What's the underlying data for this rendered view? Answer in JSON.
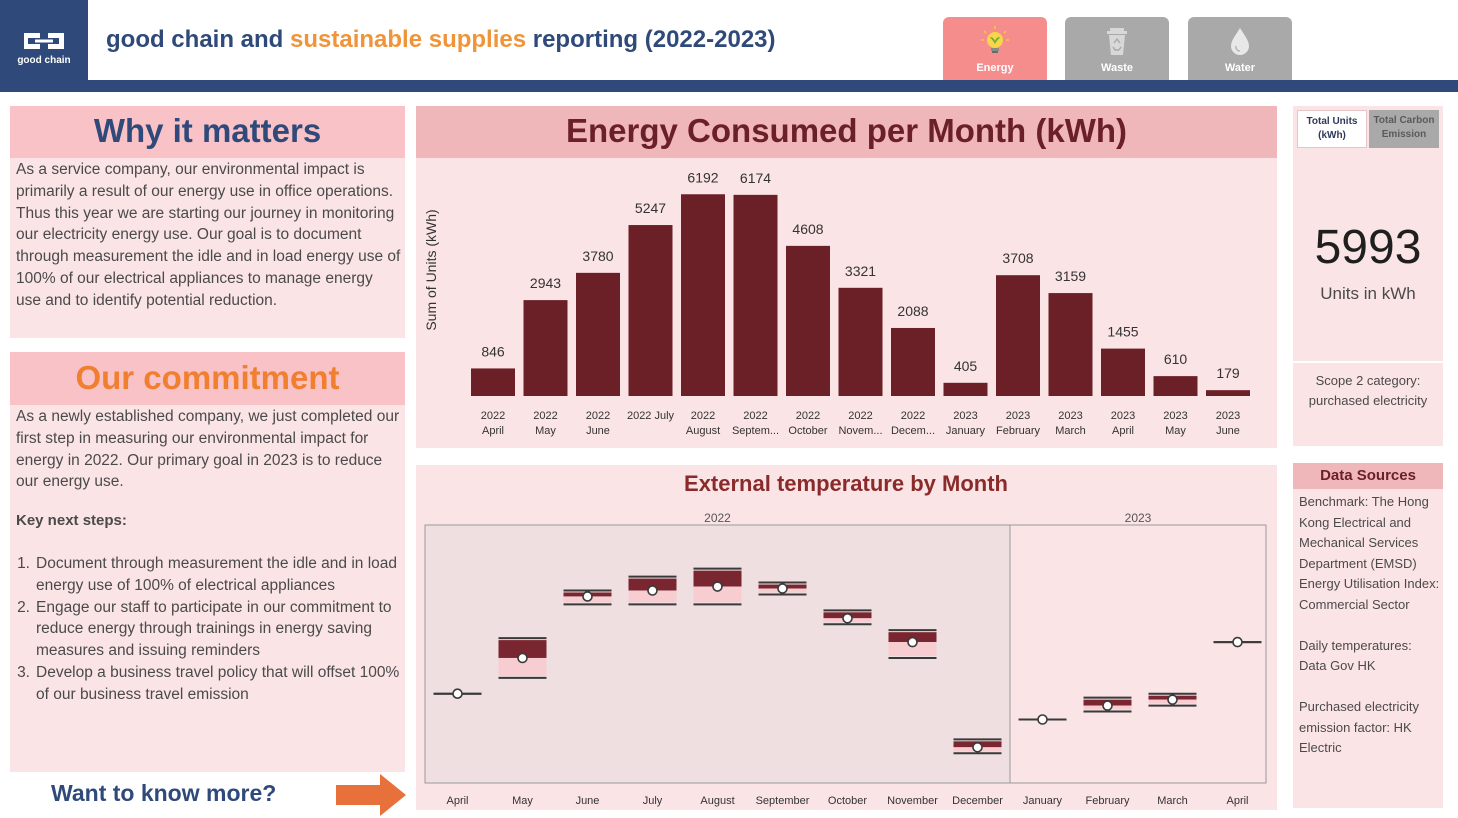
{
  "header": {
    "logo_text": "good chain",
    "title_part1": "good chain and ",
    "title_highlight": "sustainable supplies",
    "title_part2": " reporting (2022-2023)",
    "nav": [
      {
        "label": "Energy",
        "icon": "lightbulb-icon",
        "active": true
      },
      {
        "label": "Waste",
        "icon": "recycle-bin-icon",
        "active": false
      },
      {
        "label": "Water",
        "icon": "water-drop-icon",
        "active": false
      }
    ]
  },
  "why": {
    "heading": "Why it matters",
    "body": "As a service company, our environmental impact is primarily a result of our energy use in office operations. Thus this year we are starting our journey in monitoring our electricity energy use. Our goal is to document through measurement the idle and in load energy use of 100% of our electrical appliances to manage energy use and to identify potential reduction."
  },
  "commitment": {
    "heading": "Our commitment",
    "body": "As a newly established company, we just completed our first step in measuring our environmental impact for energy in 2022. Our primary goal in 2023 is to reduce our energy use.",
    "key_steps_label": "Key next steps:",
    "steps": [
      {
        "num": "1.",
        "text": "Document through measurement the idle and in load energy use of 100% of electrical appliances"
      },
      {
        "num": "2.",
        "text": "Engage our staff to participate in our commitment to reduce energy through trainings in energy saving measures and issuing reminders"
      },
      {
        "num": "3.",
        "text": "Develop a business travel policy that will offset 100% of our business travel emission"
      }
    ]
  },
  "more": {
    "label": "Want to know more?"
  },
  "kpi": {
    "tab_units": "Total Units (kWh)",
    "tab_carbon": "Total Carbon Emission",
    "value": "5993",
    "unit": "Units  in kWh",
    "scope": "Scope 2 category: purchased electricity"
  },
  "data_sources": {
    "heading": "Data Sources",
    "items": [
      "Benchmark: The Hong Kong Electrical and Mechanical Services Department (EMSD) Energy Utilisation Index: Commercial Sector",
      "Daily temperatures: Data Gov HK",
      "Purchased electricity emission factor: HK Electric"
    ]
  },
  "chart_data": [
    {
      "type": "bar",
      "title": "Energy Consumed per Month (kWh)",
      "ylabel": "Sum of Units (kWh)",
      "xlabel": "",
      "categories": [
        [
          "2022",
          "April"
        ],
        [
          "2022",
          "May"
        ],
        [
          "2022",
          "June"
        ],
        [
          "2022 July",
          ""
        ],
        [
          "2022",
          "August"
        ],
        [
          "2022",
          "Septem..."
        ],
        [
          "2022",
          "October"
        ],
        [
          "2022",
          "Novem..."
        ],
        [
          "2022",
          "Decem..."
        ],
        [
          "2023",
          "January"
        ],
        [
          "2023",
          "February"
        ],
        [
          "2023",
          "March"
        ],
        [
          "2023",
          "April"
        ],
        [
          "2023",
          "May"
        ],
        [
          "2023",
          "June"
        ]
      ],
      "values": [
        846,
        2943,
        3780,
        5247,
        6192,
        6174,
        4608,
        3321,
        2088,
        405,
        3708,
        3159,
        1455,
        610,
        179
      ],
      "ylim": [
        0,
        6200
      ],
      "bar_color": "#6b1f27"
    },
    {
      "type": "box",
      "title": "External temperature by Month",
      "groups": [
        {
          "label": "2022",
          "months": [
            "April",
            "May",
            "June",
            "July",
            "August",
            "September",
            "October",
            "November",
            "December"
          ]
        },
        {
          "label": "2023",
          "months": [
            "January",
            "February",
            "March",
            "April"
          ]
        }
      ],
      "series": [
        {
          "month": "April",
          "low": 23.5,
          "q1": 23.5,
          "median": 23.5,
          "q3": 23.5,
          "high": 23.5
        },
        {
          "month": "May",
          "low": 24.3,
          "q1": 24.4,
          "median": 25.3,
          "q3": 26.2,
          "high": 26.3
        },
        {
          "month": "June",
          "low": 28.0,
          "q1": 28.1,
          "median": 28.4,
          "q3": 28.6,
          "high": 28.7
        },
        {
          "month": "July",
          "low": 28.0,
          "q1": 28.1,
          "median": 28.7,
          "q3": 29.3,
          "high": 29.4
        },
        {
          "month": "August",
          "low": 28.0,
          "q1": 28.1,
          "median": 28.9,
          "q3": 29.7,
          "high": 29.8
        },
        {
          "month": "September",
          "low": 28.5,
          "q1": 28.6,
          "median": 28.8,
          "q3": 29.0,
          "high": 29.1
        },
        {
          "month": "October",
          "low": 27.0,
          "q1": 27.1,
          "median": 27.3,
          "q3": 27.6,
          "high": 27.7
        },
        {
          "month": "November",
          "low": 25.3,
          "q1": 25.4,
          "median": 26.1,
          "q3": 26.6,
          "high": 26.7
        },
        {
          "month": "December",
          "low": 20.5,
          "q1": 20.6,
          "median": 20.8,
          "q3": 21.1,
          "high": 21.2
        },
        {
          "month": "January",
          "low": 22.2,
          "q1": 22.2,
          "median": 22.2,
          "q3": 22.2,
          "high": 22.2
        },
        {
          "month": "February",
          "low": 22.6,
          "q1": 22.7,
          "median": 22.9,
          "q3": 23.2,
          "high": 23.3
        },
        {
          "month": "March",
          "low": 22.9,
          "q1": 23.0,
          "median": 23.2,
          "q3": 23.4,
          "high": 23.5
        },
        {
          "month": "April",
          "low": 26.1,
          "q1": 26.1,
          "median": 26.1,
          "q3": 26.1,
          "high": 26.1
        }
      ],
      "ylim": [
        19,
        32
      ]
    }
  ]
}
